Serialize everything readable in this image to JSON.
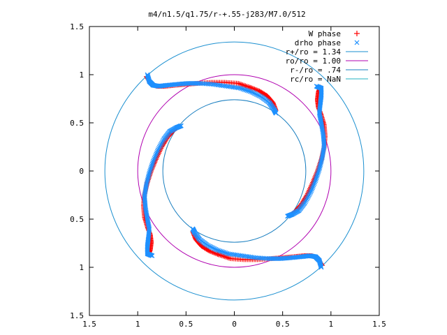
{
  "chart_data": {
    "type": "scatter",
    "title": "m4/n1.5/q1.75/r-+.55-j283/M7.0/512",
    "xlim": [
      -1.5,
      1.5
    ],
    "ylim": [
      -1.5,
      1.5
    ],
    "x_tick_values": [
      -1.5,
      -1,
      -0.5,
      0,
      0.5,
      1,
      1.5
    ],
    "x_tick_labels": [
      "1.5",
      "1",
      "0.5",
      "0",
      "0.5",
      "1",
      "1.5"
    ],
    "y_tick_values": [
      1.5,
      1,
      0.5,
      0,
      -0.5,
      -1,
      -1.5
    ],
    "y_tick_labels": [
      "1.5",
      "1",
      "0.5",
      "0",
      "0.5",
      "1",
      "1.5"
    ],
    "grid": false,
    "legend_position": "top-right",
    "legend": [
      {
        "label": "W phase",
        "marker": "+",
        "color": "#ff0000"
      },
      {
        "label": "drho phase",
        "marker": "x",
        "color": "#1e90ff"
      },
      {
        "label": "r+/ro = 1.34",
        "marker": "line",
        "color": "#1a8fd0"
      },
      {
        "label": "ro/ro = 1.00",
        "marker": "line",
        "color": "#b000b0"
      },
      {
        "label": "r-/ro = .74",
        "marker": "line",
        "color": "#1a7fc0"
      },
      {
        "label": "rc/ro = NaN",
        "marker": "line",
        "color": "#20b0c0"
      }
    ],
    "circles": [
      {
        "label": "r+/ro = 1.34",
        "radius": 1.34,
        "color": "#1a8fd0"
      },
      {
        "label": "ro/ro = 1.00",
        "radius": 1.0,
        "color": "#b000b0"
      },
      {
        "label": "r-/ro = .74",
        "radius": 0.74,
        "color": "#1a7fc0"
      }
    ],
    "series": [
      {
        "name": "W phase",
        "marker": "+",
        "color": "#ff0000",
        "x": [
          -0.91,
          -0.86,
          -0.8,
          -0.72,
          -0.62,
          -0.5,
          -0.38,
          -0.24,
          -0.1,
          0.04,
          0.16,
          0.26,
          0.34,
          0.4,
          0.43,
          0.89,
          0.87,
          0.86,
          0.87,
          0.9,
          0.93,
          0.94,
          0.93,
          0.9,
          0.86,
          0.81,
          0.75,
          0.69,
          0.63,
          0.58,
          0.91,
          0.86,
          0.8,
          0.72,
          0.62,
          0.5,
          0.38,
          0.24,
          0.1,
          -0.04,
          -0.16,
          -0.26,
          -0.34,
          -0.4,
          -0.43,
          -0.89,
          -0.87,
          -0.86,
          -0.87,
          -0.9,
          -0.93,
          -0.94,
          -0.93,
          -0.9,
          -0.86,
          -0.81,
          -0.75,
          -0.69,
          -0.63,
          -0.58
        ],
        "y": [
          0.98,
          0.9,
          0.88,
          0.88,
          0.89,
          0.9,
          0.91,
          0.92,
          0.92,
          0.91,
          0.87,
          0.83,
          0.78,
          0.71,
          0.63,
          0.87,
          0.82,
          0.74,
          0.66,
          0.58,
          0.48,
          0.36,
          0.24,
          0.12,
          0.0,
          -0.12,
          -0.25,
          -0.35,
          -0.42,
          -0.46,
          -0.98,
          -0.9,
          -0.88,
          -0.88,
          -0.89,
          -0.9,
          -0.91,
          -0.92,
          -0.92,
          -0.91,
          -0.87,
          -0.83,
          -0.78,
          -0.71,
          -0.63,
          -0.87,
          -0.82,
          -0.74,
          -0.66,
          -0.58,
          -0.48,
          -0.36,
          -0.24,
          -0.12,
          0.0,
          0.12,
          0.25,
          0.35,
          0.42,
          0.46
        ]
      },
      {
        "name": "drho phase",
        "marker": "x",
        "color": "#1e90ff",
        "x": [
          -0.9,
          -0.88,
          -0.84,
          -0.78,
          -0.7,
          -0.6,
          -0.48,
          -0.36,
          -0.22,
          -0.08,
          0.06,
          0.18,
          0.28,
          0.36,
          0.41,
          0.43,
          0.85,
          0.9,
          0.9,
          0.89,
          0.88,
          0.9,
          0.92,
          0.93,
          0.91,
          0.88,
          0.84,
          0.79,
          0.73,
          0.67,
          0.6,
          0.55,
          0.9,
          0.88,
          0.84,
          0.78,
          0.7,
          0.6,
          0.48,
          0.36,
          0.22,
          0.08,
          -0.06,
          -0.18,
          -0.28,
          -0.36,
          -0.41,
          -0.43,
          -0.85,
          -0.9,
          -0.9,
          -0.89,
          -0.88,
          -0.9,
          -0.92,
          -0.93,
          -0.91,
          -0.88,
          -0.84,
          -0.79,
          -0.73,
          -0.67,
          -0.6,
          -0.55
        ],
        "y": [
          1.0,
          0.93,
          0.89,
          0.88,
          0.89,
          0.9,
          0.91,
          0.91,
          0.9,
          0.88,
          0.86,
          0.82,
          0.77,
          0.71,
          0.64,
          0.6,
          0.88,
          0.86,
          0.78,
          0.7,
          0.6,
          0.5,
          0.38,
          0.26,
          0.14,
          0.02,
          -0.1,
          -0.22,
          -0.33,
          -0.41,
          -0.45,
          -0.47,
          -1.0,
          -0.93,
          -0.89,
          -0.88,
          -0.89,
          -0.9,
          -0.91,
          -0.91,
          -0.9,
          -0.88,
          -0.86,
          -0.82,
          -0.77,
          -0.71,
          -0.64,
          -0.6,
          -0.88,
          -0.86,
          -0.78,
          -0.7,
          -0.6,
          -0.5,
          -0.38,
          -0.26,
          -0.14,
          -0.02,
          0.1,
          0.22,
          0.33,
          0.41,
          0.45,
          0.47
        ]
      }
    ]
  }
}
